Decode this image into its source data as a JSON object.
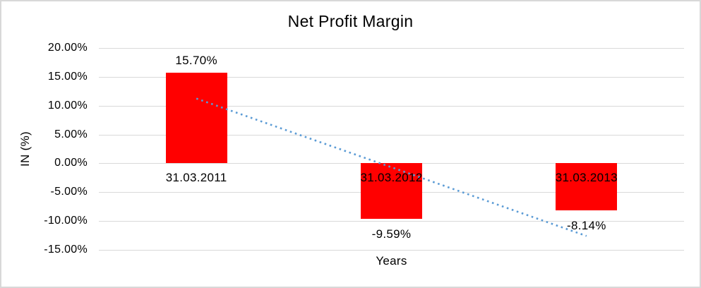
{
  "chart_data": {
    "type": "bar",
    "title": "Net Profit Margin",
    "xlabel": "Years",
    "ylabel": "IN (%)",
    "categories": [
      "31.03.2011",
      "31.03.2012",
      "31.03.2013"
    ],
    "values": [
      15.7,
      -9.59,
      -8.14
    ],
    "value_labels": [
      "15.70%",
      "-9.59%",
      "-8.14%"
    ],
    "ylim": [
      -15,
      20
    ],
    "yticks": [
      {
        "value": 20,
        "label": "20.00%"
      },
      {
        "value": 15,
        "label": "15.00%"
      },
      {
        "value": 10,
        "label": "10.00%"
      },
      {
        "value": 5,
        "label": "5.00%"
      },
      {
        "value": 0,
        "label": "0.00%"
      },
      {
        "value": -5,
        "label": "-5.00%"
      },
      {
        "value": -10,
        "label": "-10.00%"
      },
      {
        "value": -15,
        "label": "-15.00%"
      }
    ],
    "grid": true,
    "legend": "none",
    "bar_color": "#FF0000",
    "gridline_color": "#D9D9D9",
    "text_color": "#000000",
    "trendline": {
      "type": "linear",
      "style": "dotted",
      "color": "#5B9BD5",
      "endpoints_pct": [
        11.24,
        -12.59
      ]
    }
  }
}
